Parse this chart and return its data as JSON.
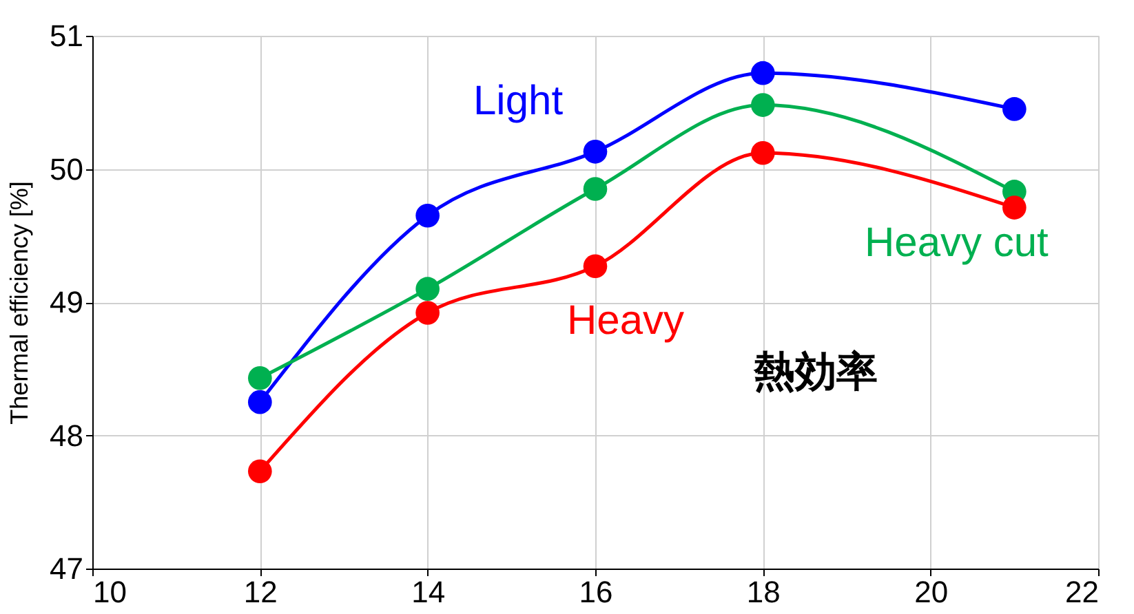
{
  "chart_data": {
    "type": "line",
    "ylabel": "Thermal efficiency [%]",
    "x": [
      12,
      14,
      16,
      18,
      21
    ],
    "series": [
      {
        "name": "Light",
        "color": "#0000ff",
        "values": [
          48.25,
          49.65,
          50.13,
          50.72,
          50.45
        ]
      },
      {
        "name": "Heavy cut",
        "color": "#00b050",
        "values": [
          48.43,
          49.1,
          49.85,
          50.48,
          49.83
        ]
      },
      {
        "name": "Heavy",
        "color": "#ff0000",
        "values": [
          47.73,
          48.92,
          49.27,
          50.12,
          49.71
        ]
      }
    ],
    "xlim": [
      10,
      22
    ],
    "xticks": [
      10,
      12,
      14,
      16,
      18,
      20,
      22
    ],
    "ylim": [
      47,
      51
    ],
    "yticks": [
      47,
      48,
      49,
      50,
      51
    ],
    "annotations": [
      "熱効率"
    ],
    "grid": true,
    "legend": false,
    "marker": "circle",
    "line_style": "solid"
  }
}
